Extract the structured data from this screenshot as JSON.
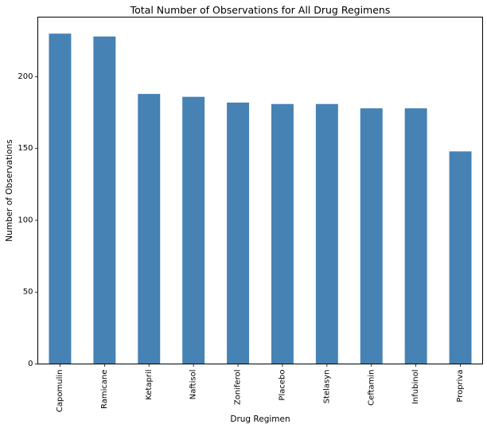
{
  "chart_data": {
    "type": "bar",
    "title": "Total Number of Observations for All Drug Regimens",
    "xlabel": "Drug Regimen",
    "ylabel": "Number of Observations",
    "categories": [
      "Capomulin",
      "Ramicane",
      "Ketapril",
      "Naftisol",
      "Zoniferol",
      "Placebo",
      "Stelasyn",
      "Ceftamin",
      "Infubinol",
      "Propriva"
    ],
    "values": [
      230,
      228,
      188,
      186,
      182,
      181,
      181,
      178,
      178,
      148
    ],
    "ylim": [
      0,
      241.5
    ],
    "yticks": [
      0,
      50,
      100,
      150,
      200
    ],
    "bar_color": "#4682b4",
    "grid": false,
    "legend": false
  }
}
